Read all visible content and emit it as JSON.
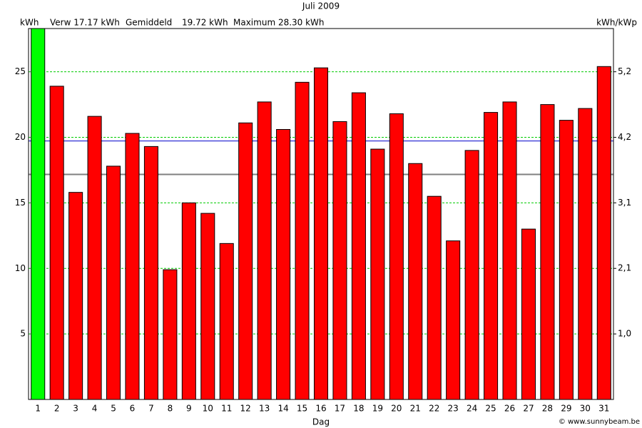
{
  "chart_data": {
    "type": "bar",
    "title": "Juli 2009",
    "y_label": "kWh",
    "y2_label": "kWh/kWp",
    "x_label": "Dag",
    "footer": "© www.sunnybeam.be",
    "categories": [
      "1",
      "2",
      "3",
      "4",
      "5",
      "6",
      "7",
      "8",
      "9",
      "10",
      "11",
      "12",
      "13",
      "14",
      "15",
      "16",
      "17",
      "18",
      "19",
      "20",
      "21",
      "22",
      "23",
      "24",
      "25",
      "26",
      "27",
      "28",
      "29",
      "30",
      "31"
    ],
    "values": [
      28.3,
      23.9,
      15.8,
      21.6,
      17.8,
      20.3,
      19.3,
      9.9,
      15.0,
      14.2,
      11.9,
      21.1,
      22.7,
      20.6,
      24.2,
      25.3,
      21.2,
      23.4,
      19.1,
      21.8,
      18.0,
      15.5,
      12.1,
      19.0,
      21.9,
      22.7,
      13.0,
      22.5,
      21.3,
      22.2,
      25.4
    ],
    "colors": [
      "#00ff00",
      "#ff0000",
      "#ff0000",
      "#ff0000",
      "#ff0000",
      "#ff0000",
      "#ff0000",
      "#ff0000",
      "#ff0000",
      "#ff0000",
      "#ff0000",
      "#ff0000",
      "#ff0000",
      "#ff0000",
      "#ff0000",
      "#ff0000",
      "#ff0000",
      "#ff0000",
      "#ff0000",
      "#ff0000",
      "#ff0000",
      "#ff0000",
      "#ff0000",
      "#ff0000",
      "#ff0000",
      "#ff0000",
      "#ff0000",
      "#ff0000",
      "#ff0000",
      "#ff0000",
      "#ff0000"
    ],
    "ylim": [
      0,
      28.3
    ],
    "yticks": [
      5,
      10,
      15,
      20,
      25
    ],
    "y2lim": [
      0,
      5.872
    ],
    "y2ticks": [
      {
        "value": 1.0375,
        "label": "1,0"
      },
      {
        "value": 2.075,
        "label": "2,1"
      },
      {
        "value": 3.1125,
        "label": "3,1"
      },
      {
        "value": 4.15,
        "label": "4,2"
      },
      {
        "value": 5.1875,
        "label": "5,2"
      }
    ],
    "grid": true,
    "grid_color": "#00cc00",
    "reference_lines": [
      {
        "name": "Verw 17.17 kWh",
        "value": 17.17,
        "color": "#808080"
      },
      {
        "name": "Gemiddeld",
        "value_label": "19.72 kWh",
        "value": 19.72,
        "color": "#0000cc"
      }
    ],
    "max_label": "Maximum 28.30 kWh",
    "max_color": "#00ee00"
  }
}
